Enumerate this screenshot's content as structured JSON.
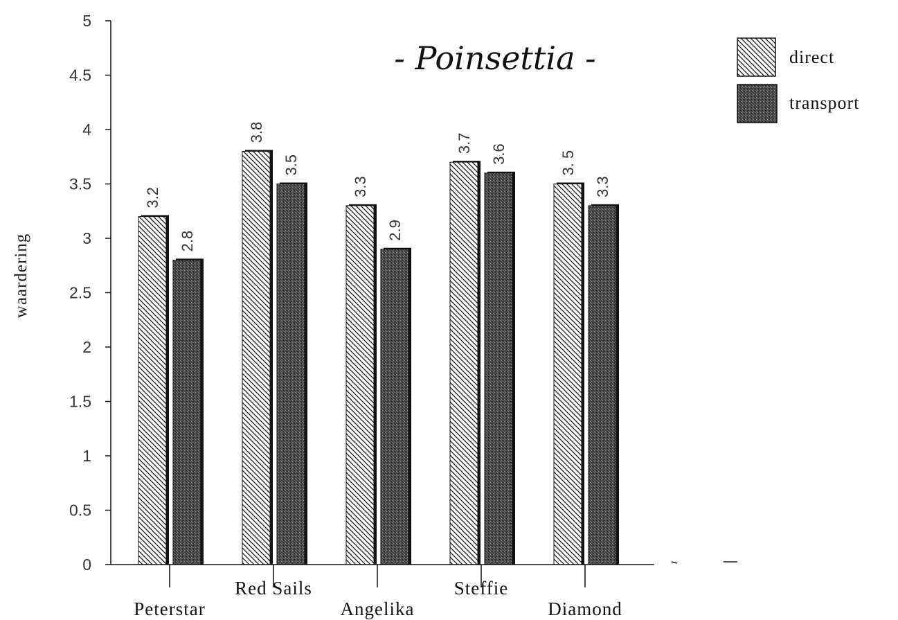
{
  "chart_data": {
    "type": "bar",
    "title": "- Poinsettia -",
    "ylabel": "waardering",
    "xlabel": "",
    "ylim": [
      0,
      5
    ],
    "yticks": [
      "0",
      "0.5",
      "1",
      "1.5",
      "2",
      "2.5",
      "3",
      "3.5",
      "4",
      "4.5",
      "5"
    ],
    "categories": [
      "Peterstar",
      "Red Sails",
      "Angelika",
      "Steffie",
      "Diamond"
    ],
    "series": [
      {
        "name": "direct",
        "values": [
          3.2,
          3.8,
          3.3,
          3.7,
          3.5
        ],
        "labels": [
          "3.2",
          "3.8",
          "3.3",
          "3.7",
          "3. 5"
        ],
        "pattern": "diagonal-hatch"
      },
      {
        "name": "transport",
        "values": [
          2.8,
          3.5,
          2.9,
          3.6,
          3.3
        ],
        "labels": [
          "2.8",
          "3.5",
          "2.9",
          "3.6",
          "3.3"
        ],
        "pattern": "dark-stipple"
      }
    ],
    "legend_position": "top-right",
    "grid": false,
    "colors": {
      "axis": "#111111",
      "hatch": "#111111",
      "stipple": "#3a3a3a"
    }
  }
}
